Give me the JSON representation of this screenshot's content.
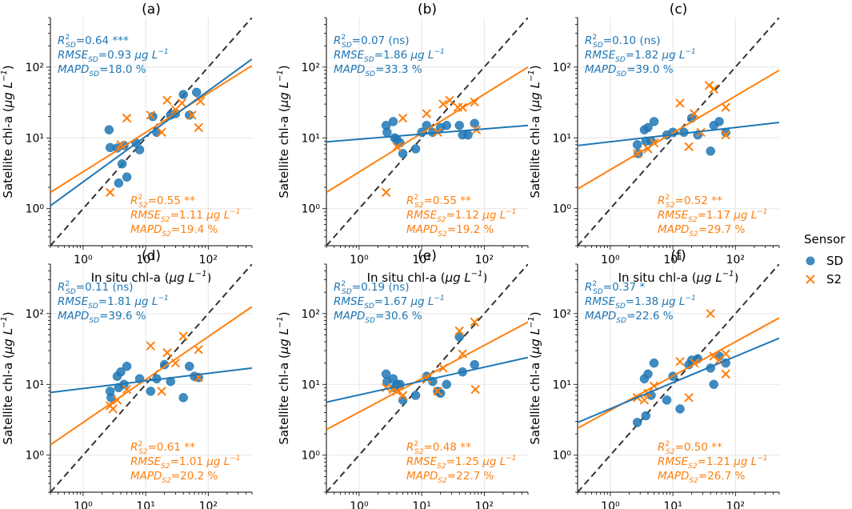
{
  "chart_data": {
    "type": "scatter",
    "scale": "log-log",
    "xlim": [
      0.3,
      500
    ],
    "ylim": [
      0.3,
      500
    ],
    "xlabel": "In situ chl-a (μg L⁻¹)",
    "ylabel": "Satellite chl-a (μg L⁻¹)",
    "tick_values": [
      1,
      10,
      100
    ],
    "tick_labels": [
      "10⁰",
      "10¹",
      "10²"
    ],
    "colors": {
      "SD": "#1f77b4",
      "S2": "#ff7f0e",
      "identity": "#333333",
      "grid": "#e5e5e5"
    },
    "legend": {
      "title": "Sensor",
      "entries": [
        {
          "label": "SD",
          "marker": "circle",
          "color": "#1f77b4"
        },
        {
          "label": "S2",
          "marker": "x",
          "color": "#ff7f0e"
        }
      ]
    },
    "panels": [
      {
        "title": "(a)",
        "SD": {
          "points": [
            [
              2.6,
              13
            ],
            [
              2.7,
              7.3
            ],
            [
              3.5,
              7.2
            ],
            [
              3.7,
              2.3
            ],
            [
              4.2,
              4.3
            ],
            [
              4.5,
              7.8
            ],
            [
              5,
              2.8
            ],
            [
              7,
              8.5
            ],
            [
              8,
              6.8
            ],
            [
              13,
              20
            ],
            [
              15,
              12
            ],
            [
              25,
              21
            ],
            [
              30,
              22
            ],
            [
              40,
              41
            ],
            [
              50,
              21
            ],
            [
              65,
              44
            ]
          ],
          "fit": [
            [
              0.3,
              1.1
            ],
            [
              500,
              130
            ]
          ],
          "stats": {
            "r2": "0.64 ***",
            "rmse": "0.93",
            "mapd": "18.0 %"
          }
        },
        "S2": {
          "points": [
            [
              2.7,
              1.7
            ],
            [
              4,
              8
            ],
            [
              5,
              19
            ],
            [
              12,
              21
            ],
            [
              18,
              12
            ],
            [
              22,
              34
            ],
            [
              30,
              25
            ],
            [
              38,
              31
            ],
            [
              55,
              21
            ],
            [
              70,
              14
            ],
            [
              75,
              33
            ]
          ],
          "fit": [
            [
              0.3,
              1.7
            ],
            [
              500,
              105
            ]
          ],
          "stats": {
            "r2": "0.55 **",
            "rmse": "1.11",
            "mapd": "19.4 %"
          }
        }
      },
      {
        "title": "(b)",
        "SD": {
          "points": [
            [
              2.7,
              15
            ],
            [
              2.8,
              12
            ],
            [
              3.5,
              17
            ],
            [
              3.7,
              10
            ],
            [
              4,
              9.5
            ],
            [
              4.5,
              8.5
            ],
            [
              5,
              6
            ],
            [
              8,
              7
            ],
            [
              10,
              12
            ],
            [
              12,
              15
            ],
            [
              15,
              12
            ],
            [
              20,
              14
            ],
            [
              25,
              15
            ],
            [
              40,
              15
            ],
            [
              45,
              11
            ],
            [
              55,
              11
            ],
            [
              70,
              16
            ]
          ],
          "fit": [
            [
              0.3,
              8.8
            ],
            [
              500,
              15
            ]
          ],
          "stats": {
            "r2": "0.07 (ns)",
            "rmse": "1.86",
            "mapd": "33.3 %"
          }
        },
        "S2": {
          "points": [
            [
              2.7,
              1.7
            ],
            [
              4,
              7.5
            ],
            [
              5,
              19
            ],
            [
              12,
              22
            ],
            [
              18,
              12
            ],
            [
              22,
              30
            ],
            [
              28,
              34
            ],
            [
              38,
              27
            ],
            [
              45,
              27
            ],
            [
              70,
              32
            ],
            [
              75,
              13
            ]
          ],
          "fit": [
            [
              0.3,
              1.7
            ],
            [
              500,
              100
            ]
          ],
          "stats": {
            "r2": "0.55 **",
            "rmse": "1.12",
            "mapd": "19.2 %"
          }
        }
      },
      {
        "title": "(c)",
        "SD": {
          "points": [
            [
              2.7,
              8
            ],
            [
              2.8,
              6
            ],
            [
              3.5,
              13
            ],
            [
              3.7,
              9
            ],
            [
              4,
              14
            ],
            [
              4.5,
              9
            ],
            [
              5,
              17
            ],
            [
              8,
              11
            ],
            [
              10,
              12
            ],
            [
              15,
              12
            ],
            [
              20,
              19
            ],
            [
              25,
              11
            ],
            [
              40,
              6.5
            ],
            [
              45,
              15
            ],
            [
              55,
              17
            ],
            [
              70,
              12
            ]
          ],
          "fit": [
            [
              0.3,
              7.8
            ],
            [
              500,
              16.5
            ]
          ],
          "stats": {
            "r2": "0.10 (ns)",
            "rmse": "1.82",
            "mapd": "39.0 %"
          }
        },
        "S2": {
          "points": [
            [
              2.7,
              6
            ],
            [
              4,
              7
            ],
            [
              5,
              8.5
            ],
            [
              13,
              31
            ],
            [
              18,
              7.5
            ],
            [
              22,
              22
            ],
            [
              28,
              12
            ],
            [
              38,
              55
            ],
            [
              45,
              49
            ],
            [
              70,
              27
            ],
            [
              70,
              11
            ]
          ],
          "fit": [
            [
              0.3,
              1.9
            ],
            [
              500,
              90
            ]
          ],
          "stats": {
            "r2": "0.52 **",
            "rmse": "1.17",
            "mapd": "29.7 %"
          }
        }
      },
      {
        "title": "(d)",
        "SD": {
          "points": [
            [
              2.7,
              8
            ],
            [
              2.8,
              6.5
            ],
            [
              3.5,
              13
            ],
            [
              3.7,
              9
            ],
            [
              4,
              15
            ],
            [
              4.5,
              10
            ],
            [
              5,
              18
            ],
            [
              8,
              12
            ],
            [
              12,
              8
            ],
            [
              15,
              12
            ],
            [
              20,
              19
            ],
            [
              25,
              11
            ],
            [
              40,
              6.5
            ],
            [
              50,
              18
            ],
            [
              60,
              13
            ],
            [
              70,
              12.5
            ]
          ],
          "fit": [
            [
              0.3,
              7.7
            ],
            [
              500,
              17
            ]
          ],
          "stats": {
            "r2": "0.11 (ns)",
            "rmse": "1.81",
            "mapd": "39.6 %"
          }
        },
        "S2": {
          "points": [
            [
              2.7,
              5
            ],
            [
              3,
              4.5
            ],
            [
              3.5,
              6
            ],
            [
              5,
              8.5
            ],
            [
              12,
              35
            ],
            [
              18,
              8
            ],
            [
              22,
              28
            ],
            [
              30,
              20
            ],
            [
              40,
              48
            ],
            [
              70,
              31
            ],
            [
              70,
              12.5
            ]
          ],
          "fit": [
            [
              0.3,
              1.4
            ],
            [
              500,
              125
            ]
          ],
          "stats": {
            "r2": "0.61 **",
            "rmse": "1.01",
            "mapd": "20.2 %"
          }
        }
      },
      {
        "title": "(e)",
        "SD": {
          "points": [
            [
              2.7,
              14
            ],
            [
              2.8,
              11
            ],
            [
              3.5,
              12
            ],
            [
              3.7,
              9
            ],
            [
              4,
              10
            ],
            [
              4.5,
              10
            ],
            [
              5,
              6
            ],
            [
              8,
              7
            ],
            [
              12,
              13
            ],
            [
              15,
              11
            ],
            [
              18,
              8
            ],
            [
              20,
              7.5
            ],
            [
              25,
              10
            ],
            [
              40,
              47
            ],
            [
              45,
              15
            ],
            [
              70,
              19
            ]
          ],
          "fit": [
            [
              0.3,
              5.6
            ],
            [
              500,
              24
            ]
          ],
          "stats": {
            "r2": "0.19 (ns)",
            "rmse": "1.67",
            "mapd": "30.6 %"
          }
        },
        "S2": {
          "points": [
            [
              2.7,
              9
            ],
            [
              3.5,
              8.5
            ],
            [
              4,
              8
            ],
            [
              5,
              7
            ],
            [
              12,
              12
            ],
            [
              18,
              8
            ],
            [
              22,
              17
            ],
            [
              40,
              57
            ],
            [
              45,
              27
            ],
            [
              70,
              76
            ],
            [
              72,
              8.5
            ]
          ],
          "fit": [
            [
              0.3,
              2.3
            ],
            [
              500,
              76
            ]
          ],
          "stats": {
            "r2": "0.48 **",
            "rmse": "1.25",
            "mapd": "22.7 %"
          }
        }
      },
      {
        "title": "(f)",
        "SD": {
          "points": [
            [
              2.7,
              2.9
            ],
            [
              3.5,
              12
            ],
            [
              3.7,
              3.6
            ],
            [
              4,
              14
            ],
            [
              4.5,
              7
            ],
            [
              5,
              20
            ],
            [
              8,
              6
            ],
            [
              10,
              13
            ],
            [
              13,
              4.5
            ],
            [
              18,
              19
            ],
            [
              20,
              22
            ],
            [
              25,
              23
            ],
            [
              40,
              17
            ],
            [
              45,
              10
            ],
            [
              55,
              25
            ],
            [
              70,
              20
            ]
          ],
          "fit": [
            [
              0.3,
              2.9
            ],
            [
              500,
              45
            ]
          ],
          "stats": {
            "r2": "0.37 *",
            "rmse": "1.38",
            "mapd": "22.6 %"
          }
        },
        "S2": {
          "points": [
            [
              2.7,
              6.5
            ],
            [
              3.5,
              6
            ],
            [
              4,
              7.5
            ],
            [
              5,
              9.5
            ],
            [
              13,
              21
            ],
            [
              18,
              6.5
            ],
            [
              22,
              20
            ],
            [
              40,
              100
            ],
            [
              45,
              25
            ],
            [
              55,
              22
            ],
            [
              70,
              14
            ],
            [
              70,
              27
            ]
          ],
          "fit": [
            [
              0.3,
              2.4
            ],
            [
              500,
              87
            ]
          ],
          "stats": {
            "r2": "0.50 **",
            "rmse": "1.21",
            "mapd": "26.7 %"
          }
        }
      }
    ]
  }
}
